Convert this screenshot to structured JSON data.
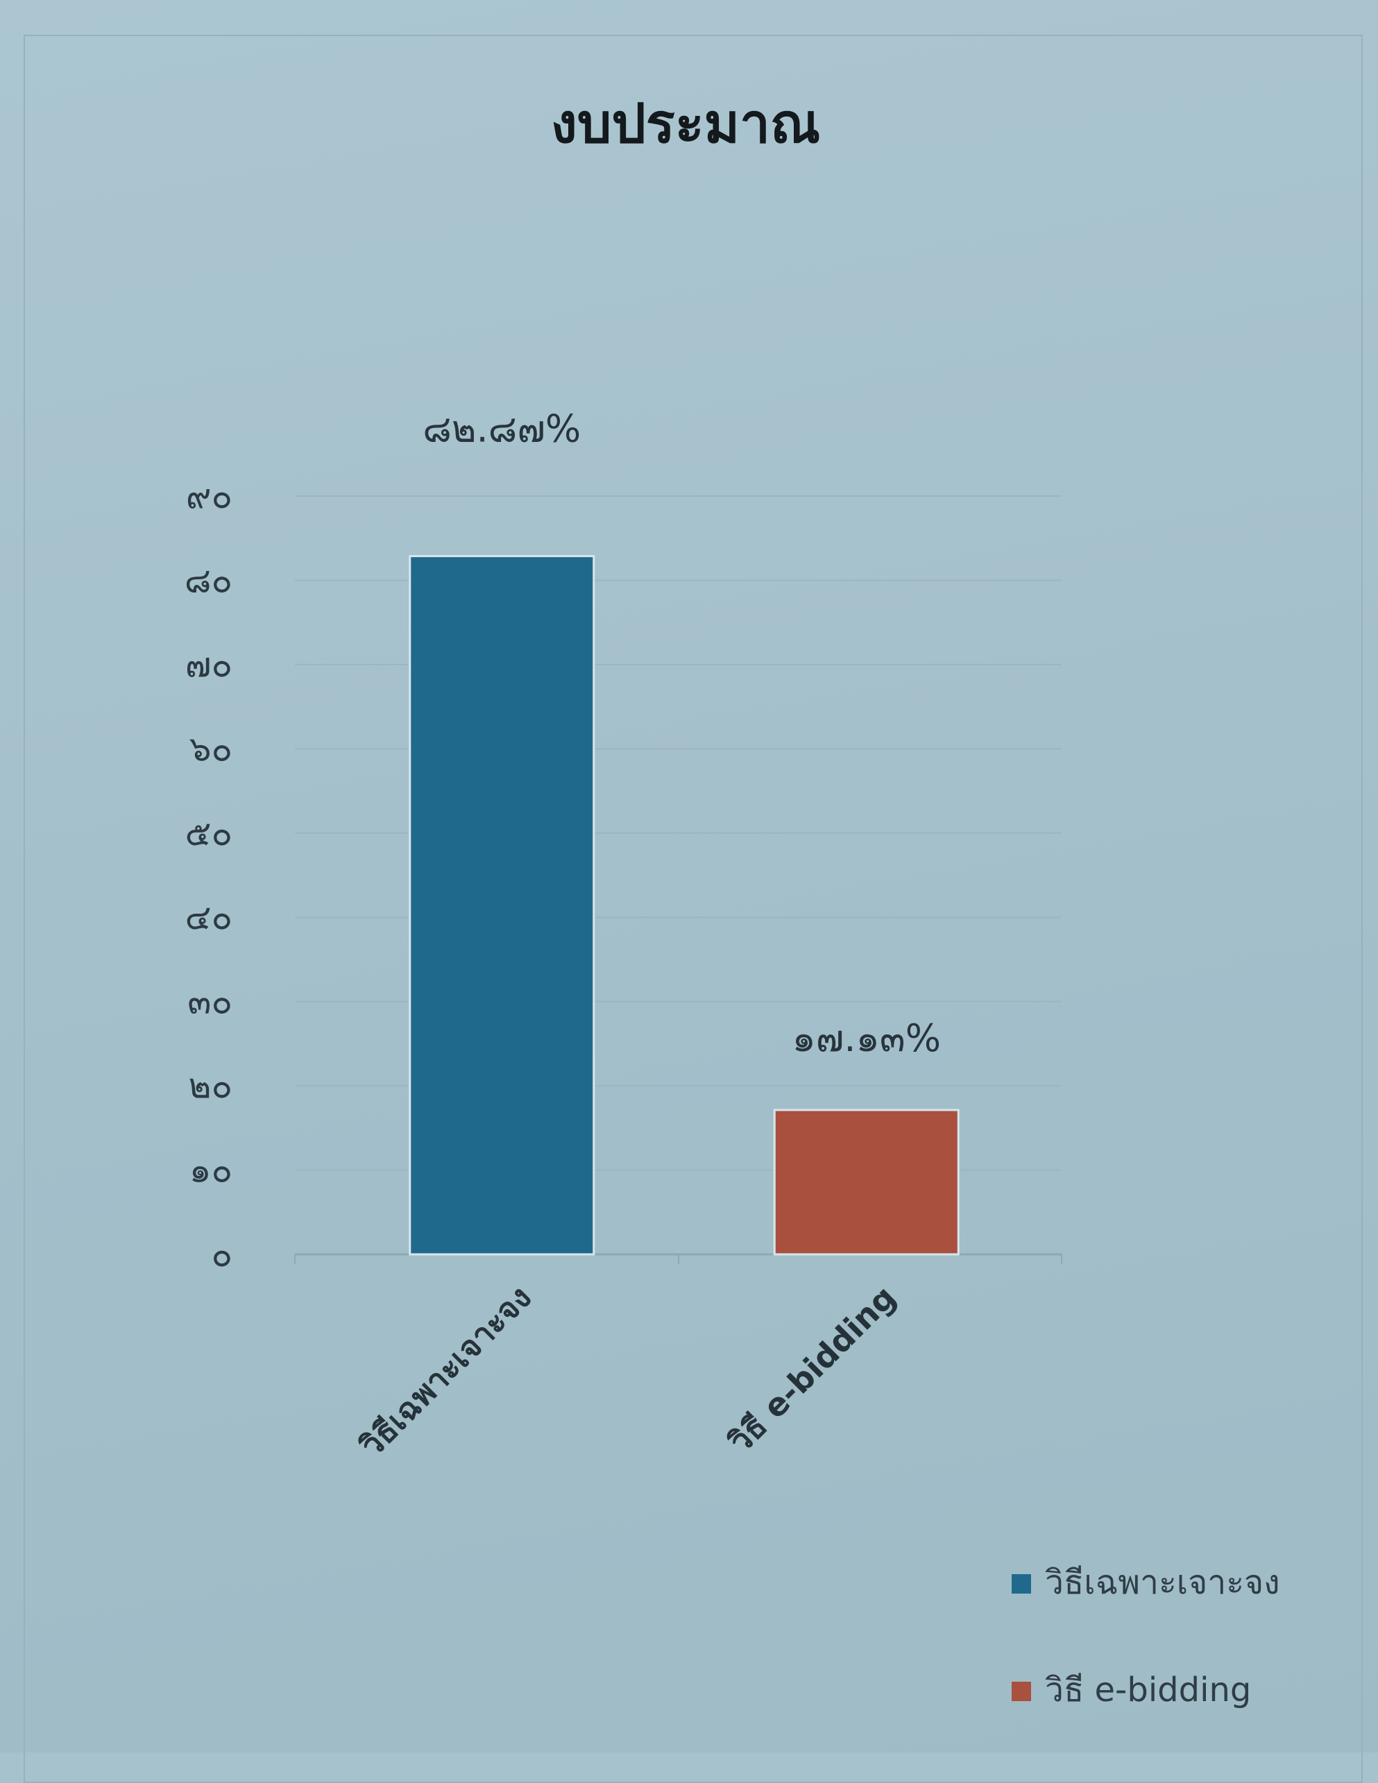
{
  "chart_data": {
    "type": "bar",
    "title": "งบประมาณ",
    "categories": [
      "วิธีเฉพาะเจาะจง",
      "วิธี e-bidding"
    ],
    "values": [
      82.87,
      17.13
    ],
    "data_labels": [
      "๘๒.๘๗%",
      "๑๗.๑๓%"
    ],
    "ylim": [
      0,
      90
    ],
    "y_ticks": [
      0,
      10,
      20,
      30,
      40,
      50,
      60,
      70,
      80,
      90
    ],
    "y_tick_labels": [
      "๐",
      "๑๐",
      "๒๐",
      "๓๐",
      "๔๐",
      "๕๐",
      "๖๐",
      "๗๐",
      "๘๐",
      "๙๐"
    ],
    "colors": [
      "#1f6a8c",
      "#a9503f"
    ],
    "grid": true,
    "legend": {
      "placement": "bottom-right",
      "entries": [
        "วิธีเฉพาะเจาะจง",
        "วิธี e-bidding"
      ]
    }
  }
}
